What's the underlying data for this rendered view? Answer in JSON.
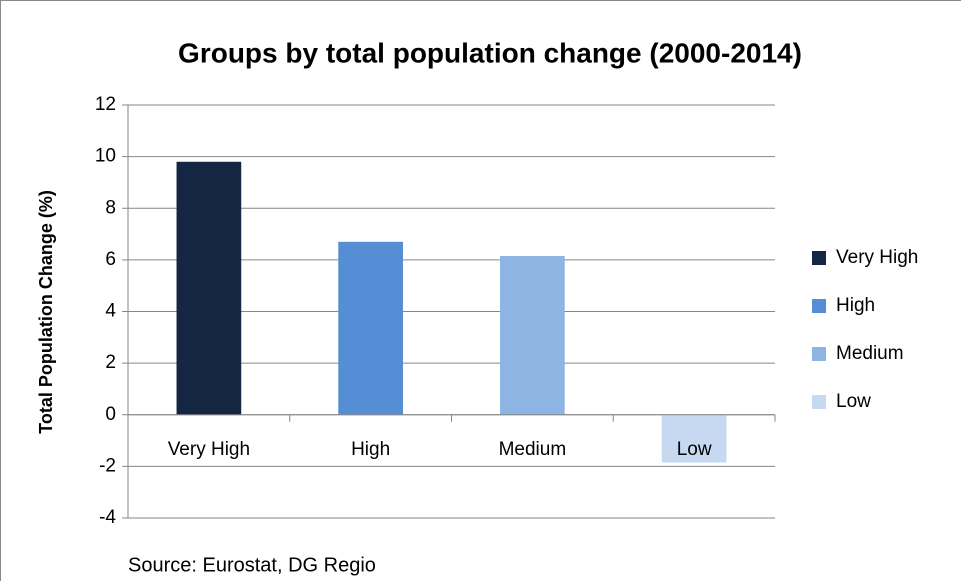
{
  "chart_data": {
    "type": "bar",
    "title": "Groups by total population change (2000-2014)",
    "ylabel": "Total Population Change (%)",
    "note": "Source: Eurostat, DG Regio",
    "categories": [
      "Very High",
      "High",
      "Medium",
      "Low"
    ],
    "values": [
      9.8,
      6.7,
      6.15,
      -1.85
    ],
    "colors": [
      "#142642",
      "#558ed5",
      "#8eb4e3",
      "#c6d9f1"
    ],
    "ylim": [
      -4,
      12
    ],
    "yticks": [
      -4,
      -2,
      0,
      2,
      4,
      6,
      8,
      10,
      12
    ],
    "grid": true,
    "legend": "right"
  }
}
